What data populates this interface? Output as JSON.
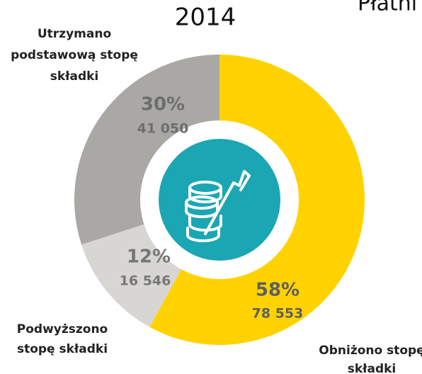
{
  "chart_data": {
    "type": "donut",
    "title": "2014",
    "annotations": [
      "Płatni"
    ],
    "categories": [
      [
        "Obniżono stopę",
        "składki"
      ],
      [
        "Podwyższono",
        "stopę składki"
      ],
      [
        "Utrzymano",
        "podstawową stopę",
        "składki"
      ]
    ],
    "values": [
      58,
      12,
      30
    ],
    "value_labels": [
      "58%",
      "12%",
      "30%"
    ],
    "counts": [
      78553,
      16546,
      41050
    ],
    "count_labels": [
      "78 553",
      "16 546",
      "41 050"
    ],
    "colors": [
      "#ffd200",
      "#d7d6d3",
      "#a9a8a4"
    ],
    "label_colors": [
      "#5f5f5f",
      "#777774",
      "#6e6e6b"
    ]
  }
}
